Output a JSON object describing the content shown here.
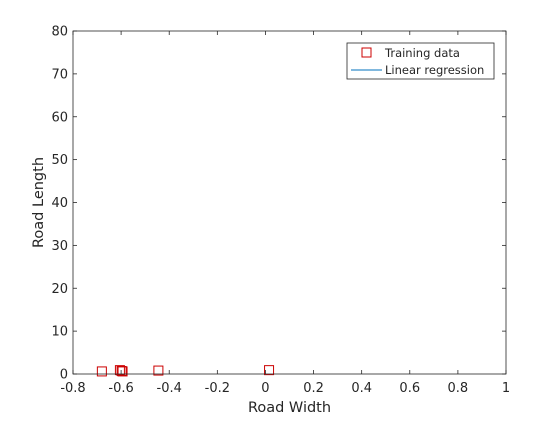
{
  "chart_data": {
    "type": "scatter",
    "title": "",
    "xlabel": "Road Width",
    "ylabel": "Road Length",
    "xlim": [
      -0.8,
      1
    ],
    "ylim": [
      0,
      80
    ],
    "xticks": [
      -0.8,
      -0.6,
      -0.4,
      -0.2,
      0,
      0.2,
      0.4,
      0.6,
      0.8,
      1
    ],
    "xtick_labels": [
      "-0.8",
      "-0.6",
      "-0.4",
      "-0.2",
      "0",
      "0.2",
      "0.4",
      "0.6",
      "0.8",
      "1"
    ],
    "yticks": [
      0,
      10,
      20,
      30,
      40,
      50,
      60,
      70,
      80
    ],
    "ytick_labels": [
      "0",
      "10",
      "20",
      "30",
      "40",
      "50",
      "60",
      "70",
      "80"
    ],
    "grid": false,
    "legend_position": "top-right",
    "series": [
      {
        "name": "Training data",
        "marker": "square",
        "color": "#cc0000",
        "points": [
          {
            "x": -0.68,
            "y": 0.6
          },
          {
            "x": -0.605,
            "y": 0.9
          },
          {
            "x": -0.598,
            "y": 0.7
          },
          {
            "x": -0.594,
            "y": 0.6
          },
          {
            "x": -0.445,
            "y": 0.8
          },
          {
            "x": 0.015,
            "y": 0.9
          }
        ]
      },
      {
        "name": "Linear regression",
        "marker": "line",
        "color": "#0072bd",
        "points": []
      }
    ]
  }
}
